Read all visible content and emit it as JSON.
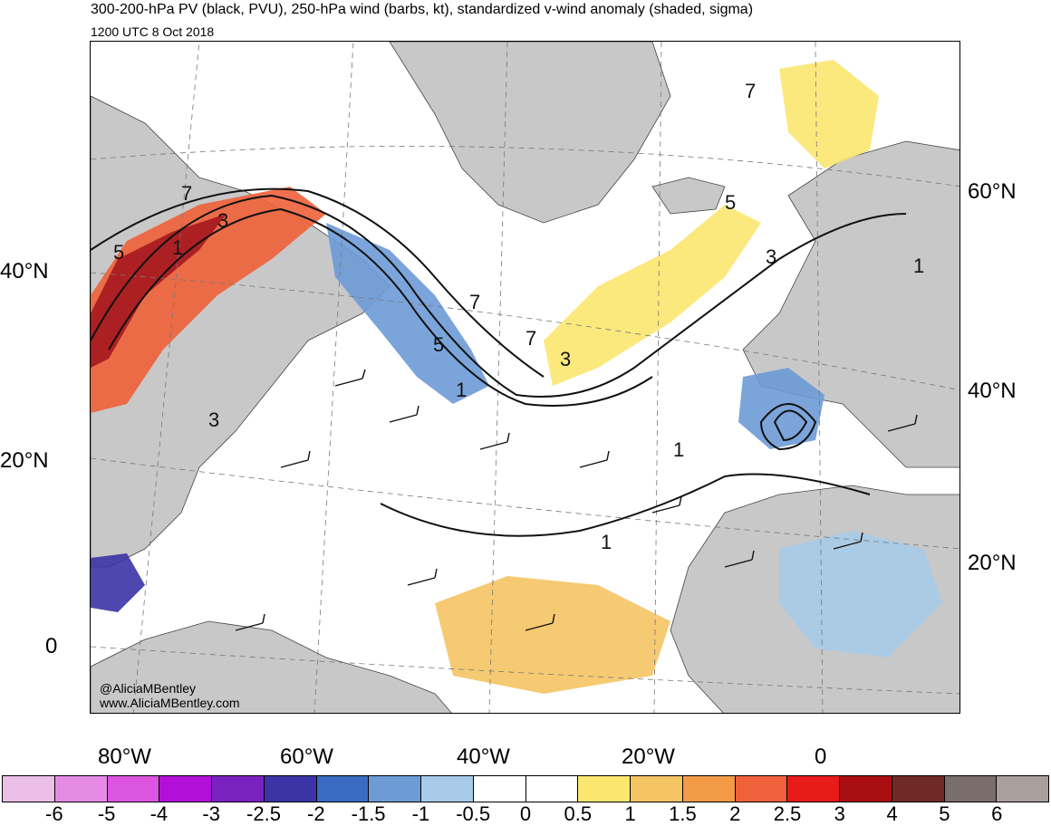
{
  "header": {
    "title": "300-200-hPa PV (black, PVU), 250-hPa wind (barbs, kt), standardized v-wind anomaly (shaded, sigma)",
    "subtitle": "1200 UTC 8 Oct 2018"
  },
  "map": {
    "lat_labels_left": [
      "40°N",
      "20°N",
      "0"
    ],
    "lat_labels_right": [
      "60°N",
      "40°N",
      "20°N"
    ],
    "lon_labels": [
      "80°W",
      "60°W",
      "40°W",
      "20°W",
      "0"
    ],
    "contour_labels": [
      "7",
      "3",
      "5",
      "1",
      "3",
      "5",
      "7",
      "1",
      "7",
      "3",
      "5",
      "7",
      "3",
      "1",
      "1",
      "1"
    ],
    "watermark": {
      "handle": "@AliciaMBentley",
      "url": "www.AliciaMBentley.com"
    },
    "land_color": "#c8c8c8",
    "ocean_color": "#ffffff"
  },
  "colorbar": {
    "colors": [
      "#ebbfe8",
      "#e58be6",
      "#db55e0",
      "#b20fd8",
      "#7a22c0",
      "#3b33a6",
      "#3a6bc2",
      "#6d9bd6",
      "#a7cbe8",
      "#ffffff",
      "#ffffff",
      "#fbe770",
      "#f5c463",
      "#f39a47",
      "#ef613a",
      "#e81a1a",
      "#a90e12",
      "#6f2a28",
      "#7a6e6b",
      "#a99f9d"
    ],
    "tick_labels": [
      "-6",
      "-5",
      "-4",
      "-3",
      "-2.5",
      "-2",
      "-1.5",
      "-1",
      "-0.5",
      "0",
      "0.5",
      "1",
      "1.5",
      "2",
      "2.5",
      "3",
      "4",
      "5",
      "6"
    ]
  }
}
